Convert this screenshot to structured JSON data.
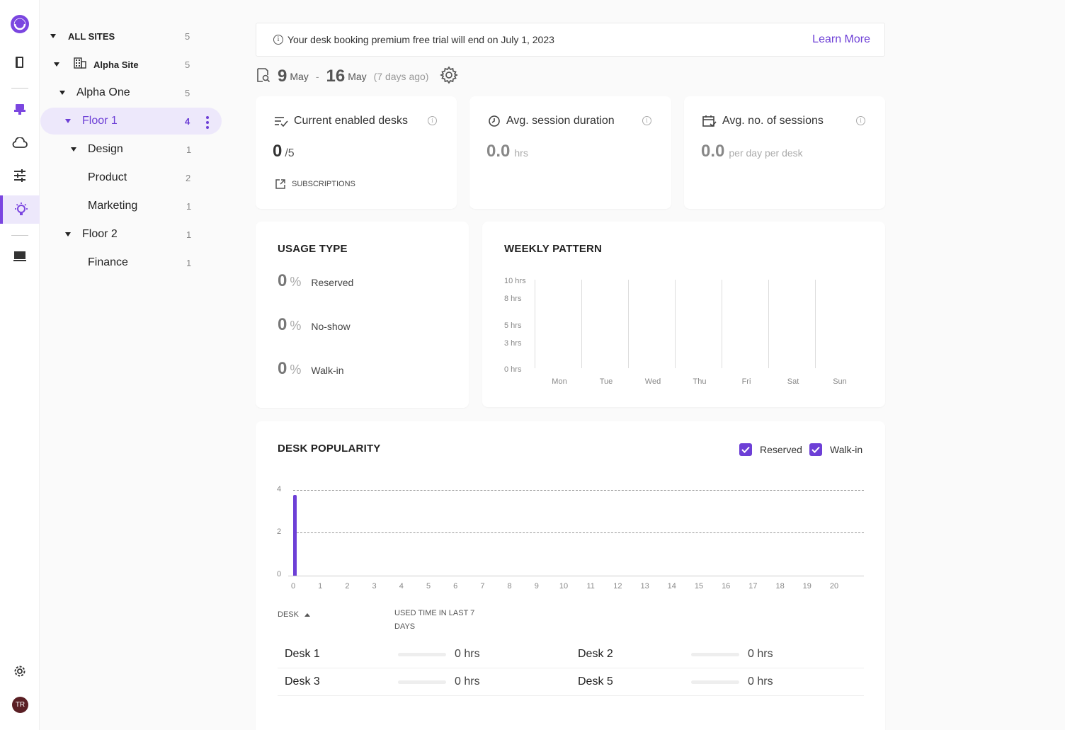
{
  "banner": {
    "message": "Your desk booking premium free trial will end on July 1, 2023",
    "link": "Learn More"
  },
  "tree": {
    "items": [
      {
        "label": "ALL SITES",
        "count": "5"
      },
      {
        "label": "Alpha Site",
        "count": "5"
      },
      {
        "label": "Alpha One",
        "count": "5"
      },
      {
        "label": "Floor 1",
        "count": "4"
      },
      {
        "label": "Design",
        "count": "1"
      },
      {
        "label": "Product",
        "count": "2"
      },
      {
        "label": "Marketing",
        "count": "1"
      },
      {
        "label": "Floor 2",
        "count": "1"
      },
      {
        "label": "Finance",
        "count": "1"
      }
    ]
  },
  "daterange": {
    "start_day": "9",
    "start_month": "May",
    "end_day": "16",
    "end_month": "May",
    "dash": "-",
    "ago": "(7 days ago)"
  },
  "stats": {
    "enabled": {
      "title": "Current enabled desks",
      "value": "0",
      "unit": "/5",
      "link": "SUBSCRIPTIONS"
    },
    "duration": {
      "title": "Avg. session duration",
      "value": "0.0",
      "unit": "hrs"
    },
    "sessions": {
      "title": "Avg. no. of sessions",
      "value": "0.0",
      "unit": "per day per desk"
    }
  },
  "usage": {
    "title": "USAGE TYPE",
    "rows": [
      {
        "value": "0",
        "pct": "%",
        "label": "Reserved"
      },
      {
        "value": "0",
        "pct": "%",
        "label": "No-show"
      },
      {
        "value": "0",
        "pct": "%",
        "label": "Walk-in"
      }
    ]
  },
  "weekly": {
    "title": "WEEKLY PATTERN",
    "y_ticks": [
      "10 hrs",
      "8 hrs",
      "5 hrs",
      "3 hrs",
      "0 hrs"
    ],
    "days": [
      "Mon",
      "Tue",
      "Wed",
      "Thu",
      "Fri",
      "Sat",
      "Sun"
    ]
  },
  "popularity": {
    "title": "DESK POPULARITY",
    "legend": {
      "reserved": "Reserved",
      "walkin": "Walk-in"
    },
    "table_header": {
      "desk": "DESK",
      "used": "USED TIME IN LAST 7 DAYS"
    },
    "desks": [
      {
        "name": "Desk 1",
        "value": "0 hrs"
      },
      {
        "name": "Desk 2",
        "value": "0 hrs"
      },
      {
        "name": "Desk 3",
        "value": "0 hrs"
      },
      {
        "name": "Desk 5",
        "value": "0 hrs"
      }
    ]
  },
  "colors": {
    "accent": "#6d3fd6",
    "selected_bg": "#ede8fb"
  },
  "chart_data": [
    {
      "type": "bar",
      "title": "WEEKLY PATTERN",
      "categories": [
        "Mon",
        "Tue",
        "Wed",
        "Thu",
        "Fri",
        "Sat",
        "Sun"
      ],
      "values": [
        0,
        0,
        0,
        0,
        0,
        0,
        0
      ],
      "y_tick_labels": [
        "0 hrs",
        "3 hrs",
        "5 hrs",
        "8 hrs",
        "10 hrs"
      ],
      "ylim": [
        0,
        10
      ]
    },
    {
      "type": "bar",
      "title": "DESK POPULARITY",
      "x_ticks": [
        0,
        1,
        2,
        3,
        4,
        5,
        6,
        7,
        8,
        9,
        10,
        11,
        12,
        13,
        14,
        15,
        16,
        17,
        18,
        19,
        20
      ],
      "y_ticks": [
        0,
        2,
        4
      ],
      "ylim": [
        0,
        4
      ],
      "grid": true,
      "legend": "top-right",
      "series": [
        {
          "name": "Reserved",
          "x": [
            0
          ],
          "values": [
            3.8
          ],
          "color": "#6d3fd6"
        }
      ]
    }
  ]
}
